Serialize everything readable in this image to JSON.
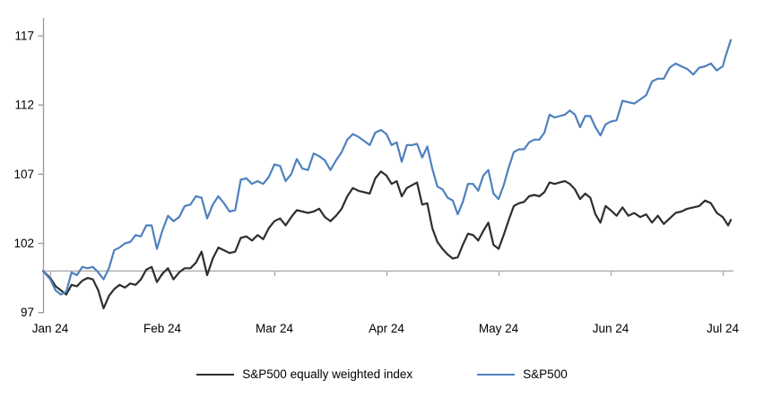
{
  "chart_data": {
    "type": "line",
    "title": "",
    "grid": false,
    "legend_position": "bottom",
    "y_axis": {
      "ticks": [
        97,
        102,
        107,
        112,
        117
      ],
      "range": [
        97,
        118.3
      ],
      "baseline_value": 100
    },
    "x_axis": {
      "tick_labels": [
        "Jan 24",
        "Feb 24",
        "Mar 24",
        "Apr 24",
        "May 24",
        "Jun 24",
        "Jul 24"
      ]
    },
    "colors": {
      "equal_weight_line": "#2e2e2e",
      "sp500_line": "#4f81bd",
      "y_axis_line": "#999999",
      "baseline_line": "#a6a6a6",
      "label_text": "#000000"
    },
    "dates": [
      "2023-12-29",
      "2024-01-02",
      "2024-01-03",
      "2024-01-04",
      "2024-01-05",
      "2024-01-08",
      "2024-01-09",
      "2024-01-10",
      "2024-01-11",
      "2024-01-12",
      "2024-01-16",
      "2024-01-17",
      "2024-01-18",
      "2024-01-19",
      "2024-01-22",
      "2024-01-23",
      "2024-01-24",
      "2024-01-25",
      "2024-01-26",
      "2024-01-29",
      "2024-01-30",
      "2024-01-31",
      "2024-02-01",
      "2024-02-02",
      "2024-02-05",
      "2024-02-06",
      "2024-02-07",
      "2024-02-08",
      "2024-02-09",
      "2024-02-12",
      "2024-02-13",
      "2024-02-14",
      "2024-02-15",
      "2024-02-16",
      "2024-02-20",
      "2024-02-21",
      "2024-02-22",
      "2024-02-23",
      "2024-02-26",
      "2024-02-27",
      "2024-02-28",
      "2024-02-29",
      "2024-03-01",
      "2024-03-04",
      "2024-03-05",
      "2024-03-06",
      "2024-03-07",
      "2024-03-08",
      "2024-03-11",
      "2024-03-12",
      "2024-03-13",
      "2024-03-14",
      "2024-03-15",
      "2024-03-18",
      "2024-03-19",
      "2024-03-20",
      "2024-03-21",
      "2024-03-22",
      "2024-03-25",
      "2024-03-26",
      "2024-03-27",
      "2024-03-28",
      "2024-04-01",
      "2024-04-02",
      "2024-04-03",
      "2024-04-04",
      "2024-04-05",
      "2024-04-08",
      "2024-04-09",
      "2024-04-10",
      "2024-04-11",
      "2024-04-12",
      "2024-04-15",
      "2024-04-16",
      "2024-04-17",
      "2024-04-18",
      "2024-04-19",
      "2024-04-22",
      "2024-04-23",
      "2024-04-24",
      "2024-04-25",
      "2024-04-26",
      "2024-04-29",
      "2024-04-30",
      "2024-05-01",
      "2024-05-02",
      "2024-05-03",
      "2024-05-06",
      "2024-05-07",
      "2024-05-08",
      "2024-05-09",
      "2024-05-10",
      "2024-05-13",
      "2024-05-14",
      "2024-05-15",
      "2024-05-16",
      "2024-05-17",
      "2024-05-20",
      "2024-05-21",
      "2024-05-22",
      "2024-05-23",
      "2024-05-24",
      "2024-05-28",
      "2024-05-29",
      "2024-05-30",
      "2024-05-31",
      "2024-06-03",
      "2024-06-04",
      "2024-06-05",
      "2024-06-06",
      "2024-06-07",
      "2024-06-10",
      "2024-06-11",
      "2024-06-12",
      "2024-06-13",
      "2024-06-14",
      "2024-06-17",
      "2024-06-18",
      "2024-06-20",
      "2024-06-21",
      "2024-06-24",
      "2024-06-25",
      "2024-06-26",
      "2024-06-27",
      "2024-06-28",
      "2024-07-01",
      "2024-07-02",
      "2024-07-03",
      "2024-07-05"
    ],
    "series": [
      {
        "name": "S&P500 equally weighted index",
        "values": [
          100.0,
          99.5,
          98.9,
          98.6,
          98.3,
          99.0,
          98.9,
          99.3,
          99.5,
          99.4,
          98.6,
          97.3,
          98.2,
          98.7,
          99.0,
          98.8,
          99.1,
          99.0,
          99.4,
          100.1,
          100.3,
          99.2,
          99.8,
          100.2,
          99.4,
          99.9,
          100.2,
          100.2,
          100.6,
          101.4,
          99.7,
          100.9,
          101.7,
          101.5,
          101.3,
          101.4,
          102.4,
          102.5,
          102.2,
          102.6,
          102.3,
          103.1,
          103.6,
          103.8,
          103.3,
          103.9,
          104.4,
          104.3,
          104.2,
          104.3,
          104.5,
          103.9,
          103.6,
          104.0,
          104.5,
          105.4,
          106.0,
          105.8,
          105.7,
          105.6,
          106.7,
          107.2,
          106.9,
          106.3,
          106.5,
          105.4,
          106.0,
          106.2,
          106.4,
          104.8,
          104.9,
          103.1,
          102.1,
          101.6,
          101.2,
          100.9,
          101.0,
          101.9,
          102.7,
          102.6,
          102.2,
          102.9,
          103.5,
          101.9,
          101.6,
          102.6,
          103.7,
          104.7,
          104.9,
          105.0,
          105.4,
          105.5,
          105.4,
          105.7,
          106.4,
          106.3,
          106.4,
          106.5,
          106.3,
          105.9,
          105.2,
          105.6,
          105.3,
          104.1,
          103.5,
          104.7,
          104.4,
          104.0,
          104.6,
          104.0,
          104.2,
          103.9,
          104.1,
          103.5,
          104.0,
          103.4,
          103.8,
          104.2,
          104.3,
          104.5,
          104.6,
          104.7,
          105.1,
          104.9,
          104.2,
          103.9,
          103.6,
          103.3,
          103.7
        ]
      },
      {
        "name": "S&P500",
        "values": [
          100.0,
          99.4,
          98.6,
          98.3,
          98.5,
          99.9,
          99.7,
          100.3,
          100.2,
          100.3,
          99.9,
          99.4,
          100.2,
          101.5,
          101.7,
          102.0,
          102.1,
          102.6,
          102.5,
          103.3,
          103.3,
          101.6,
          102.9,
          104.0,
          103.6,
          103.9,
          104.7,
          104.8,
          105.4,
          105.3,
          103.8,
          104.8,
          105.4,
          104.9,
          104.3,
          104.4,
          106.6,
          106.7,
          106.3,
          106.5,
          106.3,
          106.8,
          107.7,
          107.6,
          106.5,
          107.0,
          108.1,
          107.4,
          107.3,
          108.5,
          108.3,
          108.0,
          107.3,
          108.0,
          108.6,
          109.5,
          109.9,
          109.7,
          109.4,
          109.1,
          110.0,
          110.2,
          109.9,
          109.1,
          109.3,
          107.9,
          109.1,
          109.1,
          109.2,
          108.2,
          109.0,
          107.4,
          106.1,
          105.9,
          105.3,
          105.1,
          104.1,
          105.0,
          106.3,
          106.3,
          105.8,
          106.9,
          107.3,
          105.6,
          105.2,
          106.2,
          107.5,
          108.6,
          108.8,
          108.8,
          109.3,
          109.5,
          109.5,
          110.0,
          111.3,
          111.1,
          111.2,
          111.3,
          111.6,
          111.3,
          110.4,
          111.2,
          111.2,
          110.4,
          109.8,
          110.6,
          110.8,
          110.9,
          112.3,
          112.2,
          112.1,
          112.4,
          112.7,
          113.7,
          113.9,
          113.9,
          114.7,
          115.0,
          114.8,
          114.6,
          114.2,
          114.7,
          114.8,
          115.0,
          114.5,
          114.8,
          115.5,
          116.1,
          116.7
        ]
      }
    ]
  }
}
